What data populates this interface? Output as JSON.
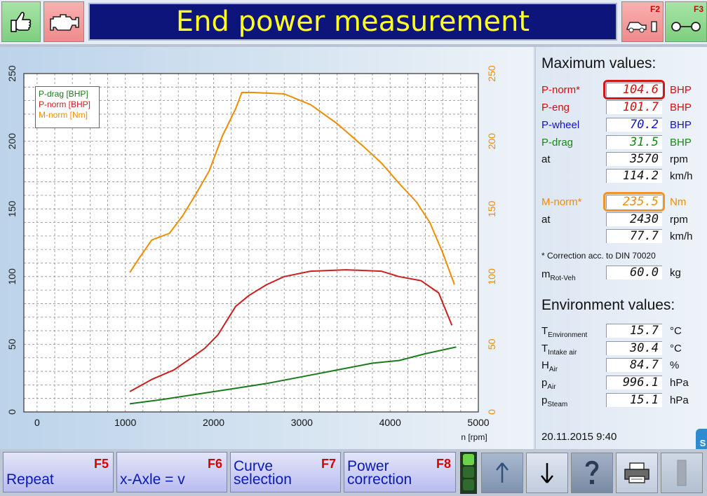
{
  "header": {
    "title": "End power measurement",
    "f2_key": "F2",
    "f3_key": "F3",
    "icons": [
      "thumbs-up-icon",
      "engine-icon",
      "dyno-car-icon",
      "roller-icon"
    ]
  },
  "chart_data": {
    "type": "line",
    "xlabel": "n [rpm]",
    "xlim": [
      -150,
      5000
    ],
    "ylim": [
      0,
      250
    ],
    "x_ticks": [
      "0",
      "1000",
      "2000",
      "3000",
      "4000",
      "5000"
    ],
    "y_ticks": [
      "0",
      "50",
      "100",
      "150",
      "200",
      "250"
    ],
    "y2_ticks": [
      "0",
      "50",
      "100",
      "150",
      "200",
      "250"
    ],
    "grid": true,
    "legend_position": "top-left",
    "series": [
      {
        "name": "P-drag [BHP]",
        "color": "#1b7a1b",
        "axis": "left",
        "points": [
          [
            1050,
            6
          ],
          [
            1400,
            9
          ],
          [
            1800,
            13
          ],
          [
            2200,
            17
          ],
          [
            2600,
            21
          ],
          [
            3000,
            26
          ],
          [
            3400,
            31
          ],
          [
            3800,
            36
          ],
          [
            4100,
            38
          ],
          [
            4400,
            43
          ],
          [
            4750,
            48
          ]
        ]
      },
      {
        "name": "P-norm [BHP]",
        "color": "#cc1f1f",
        "axis": "left",
        "points": [
          [
            1050,
            15
          ],
          [
            1300,
            24
          ],
          [
            1550,
            31
          ],
          [
            1750,
            40
          ],
          [
            1900,
            47
          ],
          [
            2050,
            57
          ],
          [
            2250,
            78
          ],
          [
            2400,
            86
          ],
          [
            2600,
            94
          ],
          [
            2800,
            100
          ],
          [
            3100,
            104
          ],
          [
            3500,
            105
          ],
          [
            3900,
            104
          ],
          [
            4100,
            100
          ],
          [
            4350,
            97
          ],
          [
            4550,
            88
          ],
          [
            4700,
            64
          ]
        ]
      },
      {
        "name": "M-norm [Nm]",
        "color": "#f08c00",
        "axis": "right",
        "points": [
          [
            1050,
            103
          ],
          [
            1150,
            113
          ],
          [
            1300,
            127
          ],
          [
            1500,
            132
          ],
          [
            1650,
            145
          ],
          [
            1800,
            161
          ],
          [
            1950,
            178
          ],
          [
            2100,
            204
          ],
          [
            2250,
            224
          ],
          [
            2320,
            236
          ],
          [
            2450,
            236
          ],
          [
            2800,
            235
          ],
          [
            3100,
            227
          ],
          [
            3400,
            213
          ],
          [
            3700,
            196
          ],
          [
            3900,
            184
          ],
          [
            4100,
            169
          ],
          [
            4300,
            155
          ],
          [
            4450,
            140
          ],
          [
            4600,
            117
          ],
          [
            4730,
            94
          ]
        ]
      }
    ]
  },
  "right_panel": {
    "max_title": "Maximum values:",
    "max_rows": [
      {
        "label": "P-norm*",
        "value": "104.6",
        "unit": "BHP",
        "color": "#d20f0f",
        "highlight": "#d31616"
      },
      {
        "label": "P-eng",
        "value": "101.7",
        "unit": "BHP",
        "color": "#d20f0f"
      },
      {
        "label": "P-wheel",
        "value": "70.2",
        "unit": "BHP",
        "color": "#1212c8"
      },
      {
        "label": "P-drag",
        "value": "31.5",
        "unit": "BHP",
        "color": "#138a13"
      },
      {
        "label": "at",
        "value": "3570",
        "unit": "rpm",
        "color": "#111111"
      },
      {
        "label": "",
        "value": "114.2",
        "unit": "km/h",
        "color": "#111111"
      }
    ],
    "torque_rows": [
      {
        "label": "M-norm*",
        "value": "235.5",
        "unit": "Nm",
        "color": "#f08c00",
        "highlight": "#f0952a"
      },
      {
        "label": "at",
        "value": "2430",
        "unit": "rpm",
        "color": "#111111"
      },
      {
        "label": "",
        "value": "77.7",
        "unit": "km/h",
        "color": "#111111"
      }
    ],
    "note": "* Correction acc. to DIN 70020",
    "mass": {
      "label": "m",
      "sub": "Rot-Veh",
      "value": "60.0",
      "unit": "kg"
    },
    "env_title": "Environment values:",
    "env_rows": [
      {
        "label": "T",
        "sub": "Environment",
        "value": "15.7",
        "unit": "°C"
      },
      {
        "label": "T",
        "sub": "Intake air",
        "value": "30.4",
        "unit": "°C"
      },
      {
        "label": "H",
        "sub": "Air",
        "value": "84.7",
        "unit": "%"
      },
      {
        "label": "p",
        "sub": "Air",
        "value": "996.1",
        "unit": "hPa"
      },
      {
        "label": "p",
        "sub": "Steam",
        "value": "15.1",
        "unit": "hPa"
      }
    ],
    "datetime": "20.11.2015  9:40"
  },
  "footer": {
    "buttons": [
      {
        "key": "F5",
        "label": "Repeat"
      },
      {
        "key": "F6",
        "label": "x-Axle = v"
      },
      {
        "key": "F7",
        "label": "Curve\nselection"
      },
      {
        "key": "F8",
        "label": "Power\ncorrection"
      }
    ],
    "nav_icons": [
      "arrow-up-icon",
      "arrow-down-icon",
      "help-icon",
      "printer-icon",
      "disabled-icon"
    ]
  },
  "colors": {
    "title_bg": "#0d147a",
    "title_fg": "#ffff22",
    "function_key": "#d40000",
    "button_text": "#0a19b4"
  }
}
